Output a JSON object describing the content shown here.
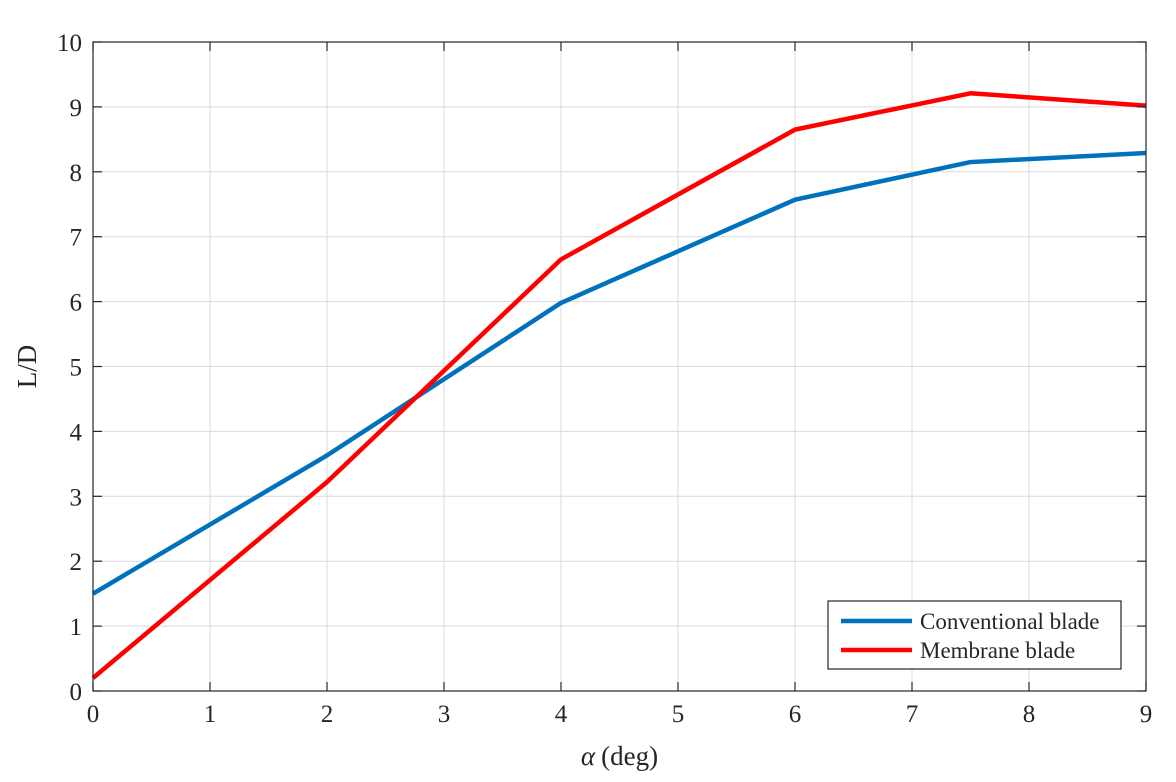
{
  "chart_data": {
    "type": "line",
    "title": "",
    "xlabel_symbol": "α",
    "xlabel_unit": "(deg)",
    "ylabel": "L/D",
    "xlim": [
      0,
      9
    ],
    "ylim": [
      0,
      10
    ],
    "xticks": [
      0,
      1,
      2,
      3,
      4,
      5,
      6,
      7,
      8,
      9
    ],
    "yticks": [
      0,
      1,
      2,
      3,
      4,
      5,
      6,
      7,
      8,
      9,
      10
    ],
    "grid": true,
    "legend_position": "bottom-right",
    "series": [
      {
        "name": "Conventional blade",
        "color": "#0072BD",
        "x": [
          0,
          2,
          4,
          6,
          7.5,
          9
        ],
        "y": [
          1.5,
          3.63,
          5.98,
          7.57,
          8.15,
          8.29
        ]
      },
      {
        "name": "Membrane blade",
        "color": "#FF0000",
        "x": [
          0,
          2,
          4,
          6,
          7.5,
          9
        ],
        "y": [
          0.2,
          3.22,
          6.65,
          8.65,
          9.21,
          9.02
        ]
      }
    ]
  }
}
